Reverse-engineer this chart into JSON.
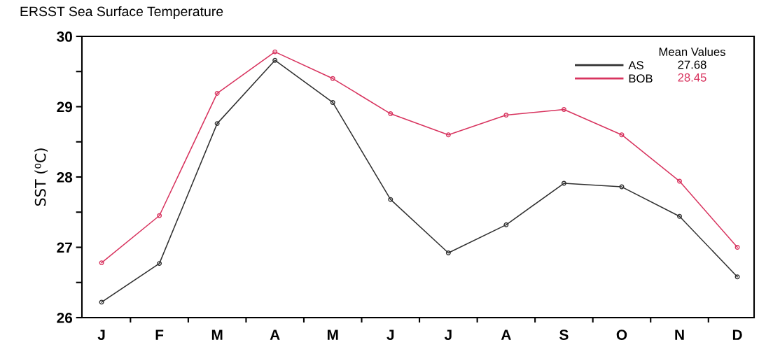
{
  "chart_data": {
    "type": "line",
    "title": "ERSST Sea Surface Temperature",
    "ylabel": "SST (⁰C)",
    "categories": [
      "J",
      "F",
      "M",
      "A",
      "M",
      "J",
      "J",
      "A",
      "S",
      "O",
      "N",
      "D"
    ],
    "series": [
      {
        "name": "AS",
        "color": "#303030",
        "values": [
          26.22,
          26.77,
          28.76,
          29.66,
          29.06,
          27.68,
          26.92,
          27.32,
          27.91,
          27.86,
          27.44,
          26.58
        ]
      },
      {
        "name": "BOB",
        "color": "#d8345f",
        "values": [
          26.78,
          27.45,
          29.19,
          29.78,
          29.4,
          28.9,
          28.6,
          28.88,
          28.96,
          28.6,
          27.94,
          27.0
        ]
      }
    ],
    "ylim": [
      26,
      30
    ],
    "yticks": [
      26,
      {
        "value": 26.5,
        "label": null
      },
      27,
      {
        "value": 27.5,
        "label": null
      },
      28,
      {
        "value": 28.5,
        "label": null
      },
      29,
      {
        "value": 29.5,
        "label": null
      },
      30
    ],
    "legend": "top right",
    "legend_title": "Mean Values",
    "annotations": [
      "27.68",
      "28.45"
    ],
    "marker": "circle",
    "line_style": "solid",
    "grid": false
  }
}
